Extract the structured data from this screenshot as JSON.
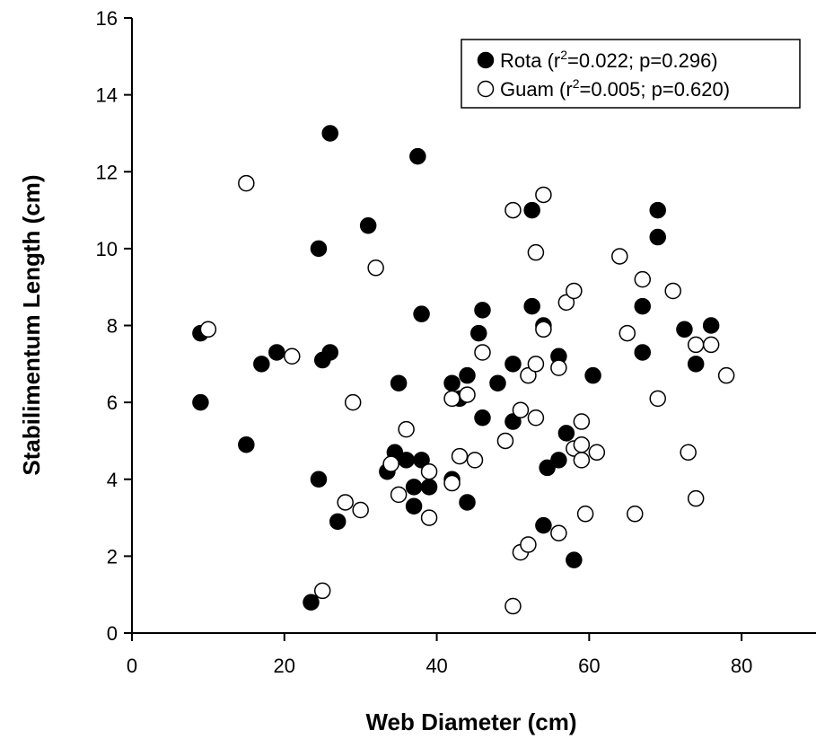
{
  "chart_data": {
    "type": "scatter",
    "xlabel": "Web Diameter (cm)",
    "ylabel": "Stabilimentum Length (cm)",
    "xlim": [
      0,
      90
    ],
    "ylim": [
      0,
      16
    ],
    "xticks": [
      "0",
      "20",
      "40",
      "60",
      "80"
    ],
    "yticks": [
      "0",
      "2",
      "4",
      "6",
      "8",
      "10",
      "12",
      "14",
      "16"
    ],
    "grid": false,
    "legend_position": "top-right",
    "series": [
      {
        "name": "Rota",
        "label_prefix": "Rota (r",
        "label_sup": "2",
        "label_suffix": "=0.022; p=0.296)",
        "marker": "filled-circle",
        "color": "#000000",
        "points": [
          [
            9,
            7.8
          ],
          [
            9,
            6.0
          ],
          [
            15,
            4.9
          ],
          [
            17,
            7.0
          ],
          [
            19,
            7.3
          ],
          [
            23.5,
            0.8
          ],
          [
            24.5,
            10.0
          ],
          [
            24.5,
            4.0
          ],
          [
            25,
            7.1
          ],
          [
            26,
            7.3
          ],
          [
            26,
            13.0
          ],
          [
            27,
            2.9
          ],
          [
            31,
            10.6
          ],
          [
            33.5,
            4.2
          ],
          [
            34.5,
            4.7
          ],
          [
            35,
            6.5
          ],
          [
            36,
            4.5
          ],
          [
            37,
            3.8
          ],
          [
            37,
            3.3
          ],
          [
            37.5,
            12.4
          ],
          [
            38,
            8.3
          ],
          [
            38,
            4.5
          ],
          [
            39,
            3.8
          ],
          [
            42,
            6.5
          ],
          [
            42,
            4.0
          ],
          [
            43,
            6.1
          ],
          [
            44,
            6.7
          ],
          [
            44,
            3.4
          ],
          [
            45.5,
            7.8
          ],
          [
            46,
            8.4
          ],
          [
            46,
            5.6
          ],
          [
            48,
            6.5
          ],
          [
            50,
            7.0
          ],
          [
            50,
            5.5
          ],
          [
            52.5,
            11.0
          ],
          [
            52.5,
            8.5
          ],
          [
            54,
            8.0
          ],
          [
            54,
            2.8
          ],
          [
            54.5,
            4.3
          ],
          [
            56,
            7.2
          ],
          [
            56,
            4.5
          ],
          [
            57,
            5.2
          ],
          [
            58,
            1.9
          ],
          [
            60.5,
            6.7
          ],
          [
            67,
            8.5
          ],
          [
            67,
            7.3
          ],
          [
            69,
            11.0
          ],
          [
            69,
            10.3
          ],
          [
            72.5,
            7.9
          ],
          [
            74,
            7.0
          ],
          [
            76,
            8.0
          ]
        ]
      },
      {
        "name": "Guam",
        "label_prefix": "Guam (r",
        "label_sup": "2",
        "label_suffix": "=0.005; p=0.620)",
        "marker": "open-circle",
        "color": "#000000",
        "points": [
          [
            10,
            7.9
          ],
          [
            15,
            11.7
          ],
          [
            21,
            7.2
          ],
          [
            25,
            1.1
          ],
          [
            28,
            3.4
          ],
          [
            29,
            6.0
          ],
          [
            30,
            3.2
          ],
          [
            32,
            9.5
          ],
          [
            34,
            4.4
          ],
          [
            35,
            3.6
          ],
          [
            36,
            5.3
          ],
          [
            39,
            4.2
          ],
          [
            39,
            3.0
          ],
          [
            42,
            6.1
          ],
          [
            42,
            3.9
          ],
          [
            43,
            4.6
          ],
          [
            44,
            6.2
          ],
          [
            45,
            4.5
          ],
          [
            46,
            7.3
          ],
          [
            49,
            5.0
          ],
          [
            50,
            11.0
          ],
          [
            50,
            0.7
          ],
          [
            51,
            5.8
          ],
          [
            51,
            2.1
          ],
          [
            52,
            6.7
          ],
          [
            52,
            2.3
          ],
          [
            53,
            9.9
          ],
          [
            53,
            7.0
          ],
          [
            53,
            5.6
          ],
          [
            54,
            11.4
          ],
          [
            54,
            7.9
          ],
          [
            56,
            6.9
          ],
          [
            56,
            2.6
          ],
          [
            57,
            8.6
          ],
          [
            58,
            8.9
          ],
          [
            58,
            4.8
          ],
          [
            59,
            5.5
          ],
          [
            59,
            4.9
          ],
          [
            59,
            4.5
          ],
          [
            59.5,
            3.1
          ],
          [
            61,
            4.7
          ],
          [
            64,
            9.8
          ],
          [
            65,
            7.8
          ],
          [
            66,
            3.1
          ],
          [
            67,
            9.2
          ],
          [
            69,
            6.1
          ],
          [
            71,
            8.9
          ],
          [
            73,
            4.7
          ],
          [
            74,
            7.5
          ],
          [
            74,
            3.5
          ],
          [
            76,
            7.5
          ],
          [
            78,
            6.7
          ]
        ]
      }
    ]
  }
}
